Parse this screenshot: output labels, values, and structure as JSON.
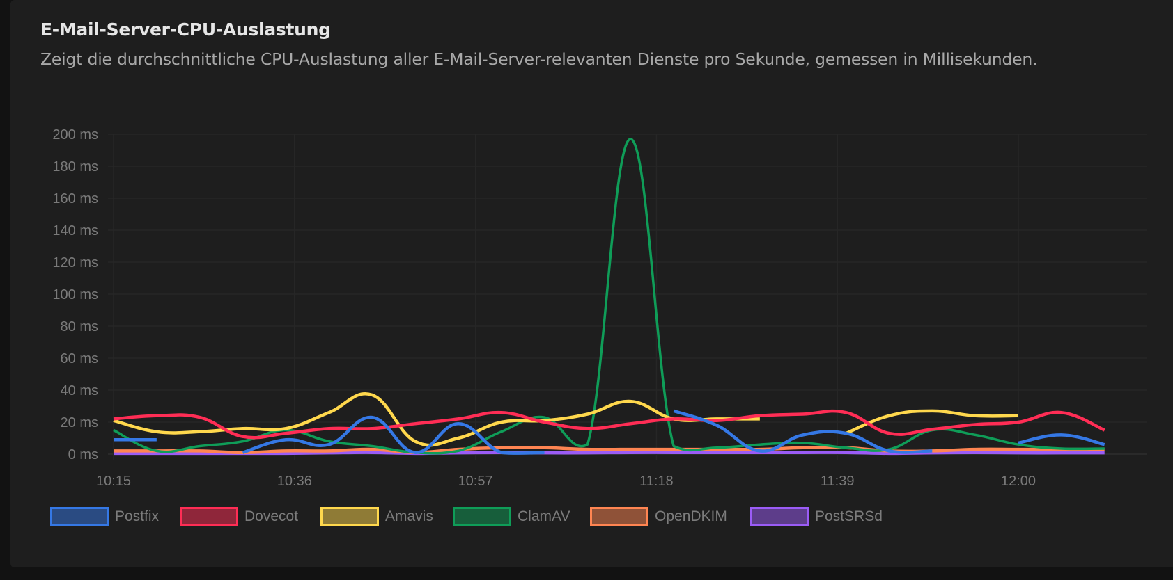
{
  "card": {
    "title": "E-Mail-Server-CPU-Auslastung",
    "description": "Zeigt die durchschnittliche CPU-Auslastung aller E-Mail-Server-relevanten Dienste pro Sekunde, gemessen in Millisekunden."
  },
  "chart_data": {
    "type": "line",
    "title": "E-Mail-Server-CPU-Auslastung",
    "xlabel": "",
    "ylabel": "",
    "y_unit": "ms",
    "ylim": [
      0,
      200
    ],
    "y_ticks": [
      "0 ms",
      "20 ms",
      "40 ms",
      "60 ms",
      "80 ms",
      "100 ms",
      "120 ms",
      "140 ms",
      "160 ms",
      "180 ms",
      "200 ms"
    ],
    "x_ticks": [
      "10:15",
      "10:36",
      "10:57",
      "11:18",
      "11:39",
      "12:00"
    ],
    "x_minutes_from_start": [
      0,
      5,
      10,
      15,
      20,
      25,
      30,
      35,
      40,
      45,
      50,
      55,
      60,
      65,
      70,
      75,
      80,
      85,
      90,
      95,
      100,
      105,
      110,
      115
    ],
    "x": [
      "10:15",
      "10:20",
      "10:25",
      "10:30",
      "10:35",
      "10:40",
      "10:45",
      "10:50",
      "10:55",
      "11:00",
      "11:05",
      "11:10",
      "11:15",
      "11:20",
      "11:25",
      "11:30",
      "11:35",
      "11:40",
      "11:45",
      "11:50",
      "11:55",
      "12:00",
      "12:05",
      "12:10"
    ],
    "grid": true,
    "legend": "bottom-left",
    "series": [
      {
        "name": "Postfix",
        "color": "#3578e5",
        "fill": "rgba(53,120,229,0.5)",
        "values": [
          9,
          9,
          null,
          1,
          9,
          6,
          23,
          1,
          19,
          1,
          1,
          null,
          null,
          27,
          18,
          2,
          12,
          13,
          2,
          2,
          null,
          7,
          12,
          6
        ]
      },
      {
        "name": "Dovecot",
        "color": "#ff2d55",
        "fill": "rgba(255,45,85,0.5)",
        "values": [
          22,
          24,
          23,
          11,
          13,
          16,
          16,
          19,
          22,
          26,
          20,
          16,
          19,
          22,
          21,
          24,
          25,
          26,
          13,
          15.5,
          18.5,
          20,
          26,
          15
        ]
      },
      {
        "name": "Amavis",
        "color": "#ffd84d",
        "fill": "rgba(255,216,77,0.5)",
        "values": [
          21,
          14,
          14,
          16,
          16,
          26,
          37,
          8,
          10,
          20,
          21,
          25,
          33,
          22,
          22,
          22,
          null,
          13,
          24,
          27,
          24,
          24,
          null,
          null
        ]
      },
      {
        "name": "ClamAV",
        "color": "#0f9d58",
        "fill": "rgba(15,157,88,0.5)",
        "values": [
          15,
          2,
          5,
          8,
          15,
          8,
          5,
          1,
          2,
          14,
          23,
          6,
          197,
          5,
          4,
          6,
          7,
          4,
          3,
          15,
          12,
          6,
          3.5,
          3.5
        ]
      },
      {
        "name": "OpenDKIM",
        "color": "#ff8552",
        "fill": "rgba(255,133,82,0.5)",
        "values": [
          2,
          2,
          2,
          1,
          2,
          2,
          3,
          1,
          3,
          4,
          4,
          3,
          3,
          3,
          3,
          3,
          4,
          4,
          2,
          2,
          3,
          3,
          3,
          3
        ]
      },
      {
        "name": "PostSRSd",
        "color": "#9b5cf6",
        "fill": "rgba(155,92,246,0.5)",
        "values": [
          0.5,
          0.5,
          0.5,
          0.5,
          0.5,
          0.8,
          1,
          0.5,
          0.8,
          1,
          0.8,
          0.8,
          1,
          1,
          1,
          1,
          1,
          1,
          0.5,
          0.8,
          1,
          0.8,
          0.8,
          0.8
        ]
      }
    ]
  }
}
